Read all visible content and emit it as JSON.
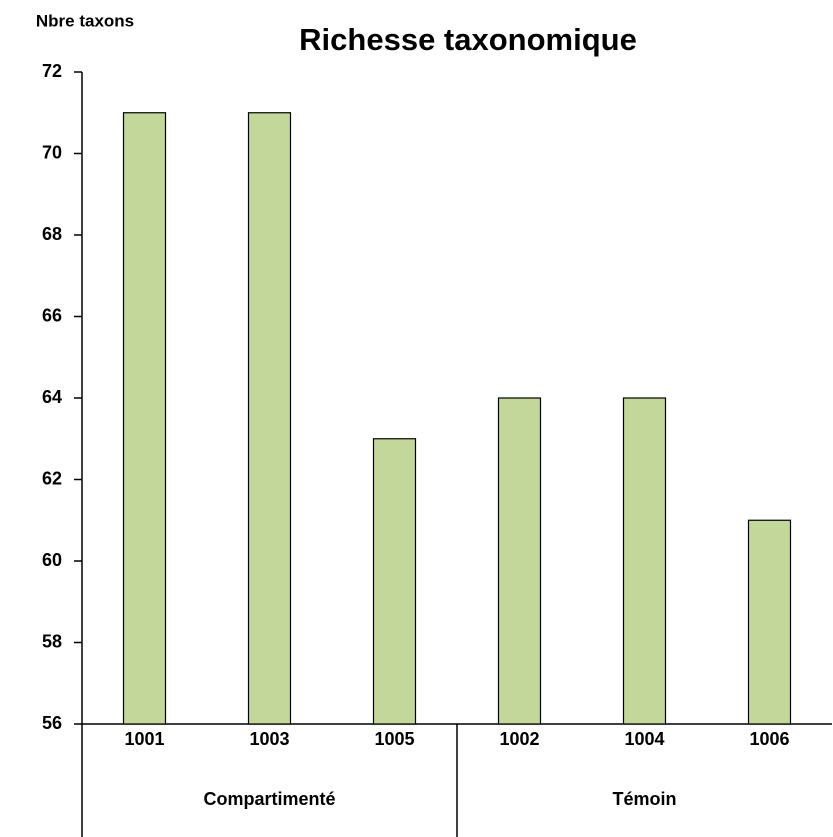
{
  "chart_data": {
    "type": "bar",
    "title": "Richesse taxonomique",
    "y_label": "Nbre taxons",
    "groups": [
      {
        "name": "Compartimenté",
        "categories": [
          "1001",
          "1003",
          "1005"
        ],
        "values": [
          71,
          71,
          63
        ]
      },
      {
        "name": "Témoin",
        "categories": [
          "1002",
          "1004",
          "1006"
        ],
        "values": [
          64,
          64,
          61
        ]
      }
    ],
    "color": "#c4d79b",
    "edge_color": "#000000",
    "ylim": [
      56,
      72
    ],
    "yticks": [
      56,
      58,
      60,
      62,
      64,
      66,
      68,
      70,
      72
    ],
    "grid": false
  }
}
